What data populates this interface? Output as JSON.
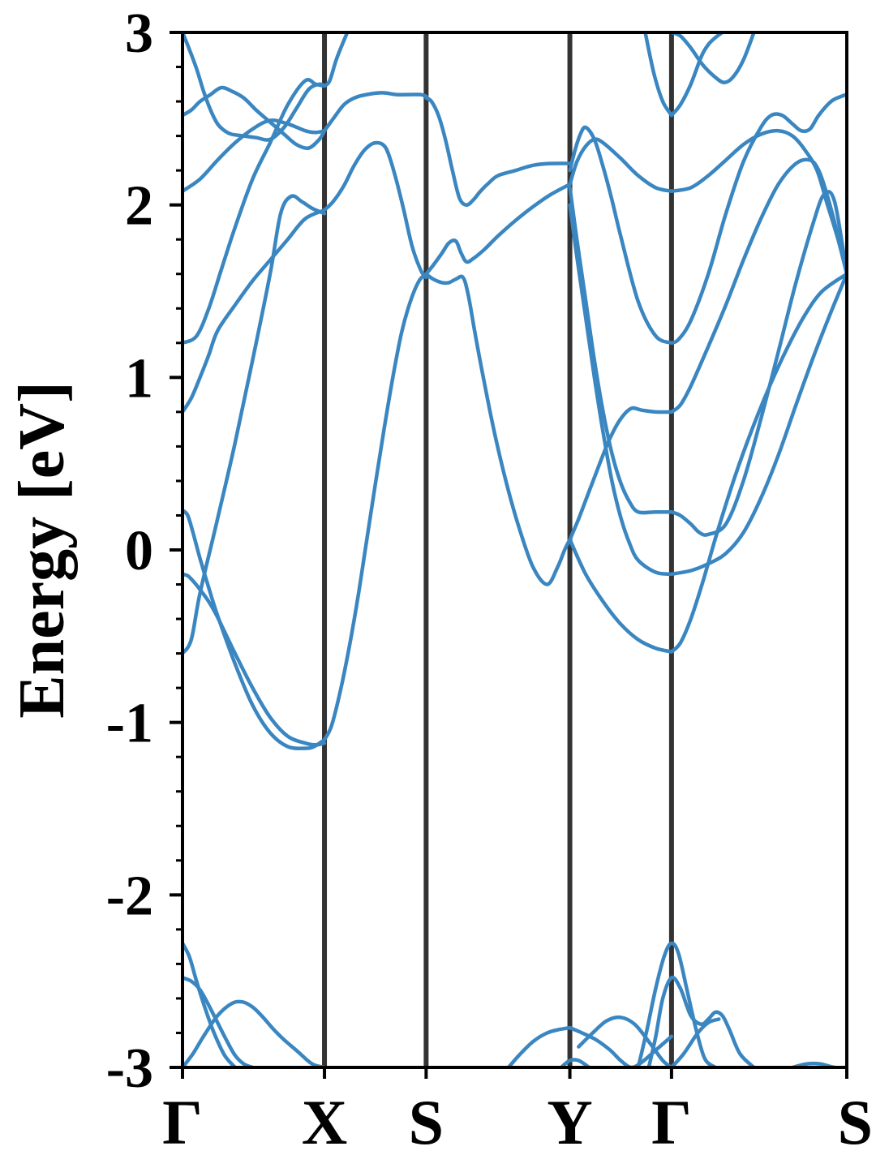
{
  "chart_data": {
    "type": "line",
    "title": "",
    "xlabel": "",
    "ylabel": "Energy [eV]",
    "ylim": [
      -3,
      3
    ],
    "yticks": [
      {
        "value": 3,
        "label": "3"
      },
      {
        "value": 2,
        "label": "2"
      },
      {
        "value": 1,
        "label": "1"
      },
      {
        "value": 0,
        "label": "0"
      },
      {
        "value": -1,
        "label": "-1"
      },
      {
        "value": -2,
        "label": "-2"
      },
      {
        "value": -3,
        "label": "-3"
      }
    ],
    "y_minor_step": 0.2,
    "grid": false,
    "legend": "none",
    "colors": {
      "bands": "#3a86c1",
      "kpath_lines": "#333333",
      "axes": "#000000"
    },
    "xlim": [
      0,
      3.79
    ],
    "kpoints": [
      {
        "label": "Γ",
        "x": 0.0
      },
      {
        "label": "X",
        "x": 0.81
      },
      {
        "label": "S",
        "x": 1.39
      },
      {
        "label": "Y",
        "x": 2.21
      },
      {
        "label": "Γ",
        "x": 2.79
      },
      {
        "label": "S",
        "x": 3.79
      }
    ],
    "series": [
      {
        "x": [
          0.0,
          0.05,
          0.1,
          0.16,
          0.22,
          0.28,
          0.35,
          0.42,
          0.5,
          0.58,
          0.65,
          0.72,
          0.78,
          0.81
        ],
        "y": [
          2.52,
          2.55,
          2.6,
          2.64,
          2.68,
          2.66,
          2.62,
          2.55,
          2.48,
          2.41,
          2.35,
          2.33,
          2.38,
          2.43
        ]
      },
      {
        "x": [
          0.0,
          0.1,
          0.2,
          0.3,
          0.4,
          0.5,
          0.6,
          0.7,
          0.76,
          0.81
        ],
        "y": [
          2.08,
          2.15,
          2.26,
          2.36,
          2.44,
          2.49,
          2.47,
          2.43,
          2.42,
          2.43
        ]
      },
      {
        "x": [
          0.0,
          0.04,
          0.08,
          0.12,
          0.16,
          0.2,
          0.24,
          0.28,
          0.35,
          0.42,
          0.5,
          0.58,
          0.65,
          0.72,
          0.78,
          0.81
        ],
        "y": [
          3.0,
          2.9,
          2.79,
          2.66,
          2.55,
          2.47,
          2.43,
          2.41,
          2.4,
          2.39,
          2.38,
          2.45,
          2.56,
          2.67,
          2.7,
          2.69
        ]
      },
      {
        "x": [
          0.0,
          0.08,
          0.15,
          0.22,
          0.3,
          0.4,
          0.5,
          0.6,
          0.7,
          0.76,
          0.81
        ],
        "y": [
          1.2,
          1.24,
          1.4,
          1.62,
          1.87,
          2.15,
          2.36,
          2.58,
          2.72,
          2.7,
          2.69
        ]
      },
      {
        "x": [
          0.0,
          0.05,
          0.1,
          0.15,
          0.2,
          0.3,
          0.4,
          0.5,
          0.6,
          0.7,
          0.81
        ],
        "y": [
          0.8,
          0.88,
          1.0,
          1.13,
          1.27,
          1.42,
          1.56,
          1.68,
          1.8,
          1.92,
          1.97
        ]
      },
      {
        "x": [
          0.0,
          0.05,
          0.1,
          0.2,
          0.3,
          0.4,
          0.5,
          0.56,
          0.62,
          0.68,
          0.74,
          0.81
        ],
        "y": [
          -0.6,
          -0.52,
          -0.25,
          0.18,
          0.62,
          1.1,
          1.6,
          1.95,
          2.05,
          2.02,
          1.98,
          1.95
        ]
      },
      {
        "x": [
          0.0,
          0.03,
          0.06,
          0.1,
          0.15,
          0.2,
          0.3,
          0.4,
          0.5,
          0.6,
          0.7,
          0.75,
          0.81
        ],
        "y": [
          0.23,
          0.2,
          0.1,
          -0.05,
          -0.22,
          -0.38,
          -0.66,
          -0.9,
          -1.06,
          -1.14,
          -1.15,
          -1.14,
          -1.1
        ]
      },
      {
        "x": [
          0.0,
          0.03,
          0.06,
          0.1,
          0.15,
          0.2,
          0.3,
          0.4,
          0.5,
          0.6,
          0.7,
          0.76,
          0.81
        ],
        "y": [
          -0.14,
          -0.15,
          -0.18,
          -0.23,
          -0.3,
          -0.39,
          -0.6,
          -0.8,
          -0.97,
          -1.08,
          -1.12,
          -1.13,
          -1.12
        ]
      },
      {
        "x": [
          0.81,
          0.84,
          0.88,
          0.94
        ],
        "y": [
          2.69,
          2.72,
          2.85,
          3.0
        ]
      },
      {
        "x": [
          0.81,
          0.86,
          0.92,
          0.98,
          1.05,
          1.14,
          1.22,
          1.3,
          1.36,
          1.39
        ],
        "y": [
          2.43,
          2.5,
          2.58,
          2.62,
          2.64,
          2.65,
          2.64,
          2.64,
          2.64,
          2.63
        ]
      },
      {
        "x": [
          0.81,
          0.86,
          0.92,
          0.98,
          1.04,
          1.1,
          1.16,
          1.21,
          1.26,
          1.31,
          1.36,
          1.39
        ],
        "y": [
          1.97,
          2.02,
          2.11,
          2.23,
          2.32,
          2.36,
          2.33,
          2.18,
          1.98,
          1.76,
          1.62,
          1.58
        ]
      },
      {
        "x": [
          0.81,
          0.85,
          0.9,
          0.95,
          1.0,
          1.05,
          1.1,
          1.15,
          1.2,
          1.25,
          1.3,
          1.35,
          1.39
        ],
        "y": [
          -1.1,
          -1.02,
          -0.82,
          -0.57,
          -0.28,
          0.05,
          0.38,
          0.7,
          1.0,
          1.26,
          1.44,
          1.56,
          1.6
        ]
      },
      {
        "x": [
          1.39,
          1.42,
          1.46,
          1.5,
          1.54,
          1.58,
          1.62,
          1.66,
          1.7,
          1.75,
          1.8,
          1.9,
          2.0,
          2.1,
          2.21
        ],
        "y": [
          2.62,
          2.6,
          2.52,
          2.38,
          2.2,
          2.04,
          2.0,
          2.03,
          2.08,
          2.13,
          2.17,
          2.2,
          2.23,
          2.24,
          2.24
        ]
      },
      {
        "x": [
          1.39,
          1.43,
          1.48,
          1.52,
          1.56,
          1.59,
          1.62,
          1.66,
          1.72,
          1.8,
          1.9,
          2.0,
          2.1,
          2.21
        ],
        "y": [
          1.6,
          1.65,
          1.72,
          1.78,
          1.79,
          1.72,
          1.67,
          1.69,
          1.74,
          1.82,
          1.91,
          1.99,
          2.06,
          2.12
        ]
      },
      {
        "x": [
          1.39,
          1.43,
          1.48,
          1.52,
          1.56,
          1.6,
          1.63,
          1.67,
          1.72,
          1.78,
          1.85,
          1.92,
          2.0,
          2.08,
          2.14,
          2.18,
          2.21
        ],
        "y": [
          1.6,
          1.57,
          1.55,
          1.55,
          1.57,
          1.58,
          1.48,
          1.25,
          0.98,
          0.68,
          0.38,
          0.13,
          -0.1,
          -0.2,
          -0.1,
          0.0,
          0.06
        ]
      },
      {
        "x": [
          2.21,
          2.24,
          2.27,
          2.3,
          2.35,
          2.4,
          2.45,
          2.5,
          2.6,
          2.7,
          2.79
        ],
        "y": [
          2.2,
          2.32,
          2.41,
          2.45,
          2.38,
          2.22,
          2.03,
          1.82,
          1.44,
          1.24,
          1.2
        ]
      },
      {
        "x": [
          2.21,
          2.25,
          2.3,
          2.35,
          2.4,
          2.5,
          2.6,
          2.7,
          2.79
        ],
        "y": [
          2.12,
          2.25,
          2.34,
          2.38,
          2.36,
          2.27,
          2.17,
          2.1,
          2.08
        ]
      },
      {
        "x": [
          2.21,
          2.25,
          2.3,
          2.35,
          2.4,
          2.45,
          2.5,
          2.55,
          2.6,
          2.7,
          2.79
        ],
        "y": [
          2.1,
          1.8,
          1.45,
          1.1,
          0.8,
          0.56,
          0.39,
          0.28,
          0.22,
          0.22,
          0.22
        ]
      },
      {
        "x": [
          2.21,
          2.25,
          2.3,
          2.35,
          2.4,
          2.45,
          2.5,
          2.55,
          2.6,
          2.7,
          2.79
        ],
        "y": [
          2.0,
          1.7,
          1.35,
          1.0,
          0.68,
          0.4,
          0.19,
          0.04,
          -0.06,
          -0.13,
          -0.14
        ]
      },
      {
        "x": [
          2.21,
          2.26,
          2.32,
          2.38,
          2.44,
          2.5,
          2.56,
          2.62,
          2.7,
          2.79
        ],
        "y": [
          0.06,
          0.18,
          0.34,
          0.5,
          0.65,
          0.76,
          0.82,
          0.81,
          0.8,
          0.8
        ]
      },
      {
        "x": [
          2.21,
          2.3,
          2.4,
          2.5,
          2.6,
          2.7,
          2.79
        ],
        "y": [
          0.06,
          -0.14,
          -0.3,
          -0.43,
          -0.52,
          -0.57,
          -0.59
        ]
      },
      {
        "x": [
          2.64,
          2.69,
          2.74,
          2.79
        ],
        "y": [
          3.0,
          2.76,
          2.6,
          2.52
        ]
      },
      {
        "x": [
          2.79,
          2.84,
          2.9,
          2.96,
          3.0,
          3.04,
          3.08
        ],
        "y": [
          2.52,
          2.58,
          2.7,
          2.86,
          2.93,
          2.97,
          3.0
        ]
      },
      {
        "x": [
          2.79,
          2.84,
          2.9,
          2.97,
          3.04,
          3.09,
          3.14,
          3.2,
          3.26
        ],
        "y": [
          3.0,
          2.98,
          2.91,
          2.81,
          2.74,
          2.71,
          2.74,
          2.84,
          3.0
        ]
      },
      {
        "x": [
          2.79,
          2.9,
          3.0,
          3.1,
          3.2,
          3.3,
          3.4,
          3.48,
          3.55,
          3.62,
          3.68,
          3.74,
          3.79
        ],
        "y": [
          2.08,
          2.1,
          2.17,
          2.26,
          2.35,
          2.41,
          2.43,
          2.4,
          2.32,
          2.2,
          2.0,
          1.8,
          1.6
        ]
      },
      {
        "x": [
          2.79,
          2.83,
          2.9,
          3.0,
          3.1,
          3.2,
          3.3,
          3.36,
          3.42,
          3.48,
          3.53,
          3.58,
          3.63,
          3.7,
          3.76,
          3.79
        ],
        "y": [
          1.2,
          1.22,
          1.33,
          1.6,
          1.95,
          2.25,
          2.45,
          2.52,
          2.52,
          2.47,
          2.43,
          2.44,
          2.52,
          2.6,
          2.63,
          2.64
        ]
      },
      {
        "x": [
          2.79,
          2.84,
          2.9,
          3.0,
          3.1,
          3.2,
          3.3,
          3.4,
          3.5,
          3.58,
          3.63,
          3.68,
          3.74,
          3.79
        ],
        "y": [
          0.8,
          0.84,
          0.95,
          1.18,
          1.42,
          1.68,
          1.92,
          2.12,
          2.24,
          2.26,
          2.2,
          2.05,
          1.82,
          1.6
        ]
      },
      {
        "x": [
          2.79,
          2.84,
          2.9,
          2.95,
          3.0,
          3.1,
          3.2,
          3.3,
          3.4,
          3.5,
          3.6,
          3.66,
          3.72,
          3.79
        ],
        "y": [
          0.22,
          0.2,
          0.15,
          0.1,
          0.09,
          0.15,
          0.4,
          0.76,
          1.15,
          1.55,
          1.9,
          2.06,
          2.02,
          1.6
        ]
      },
      {
        "x": [
          2.79,
          2.9,
          3.0,
          3.1,
          3.2,
          3.3,
          3.4,
          3.5,
          3.6,
          3.7,
          3.79
        ],
        "y": [
          -0.14,
          -0.12,
          -0.08,
          -0.02,
          0.1,
          0.3,
          0.55,
          0.84,
          1.12,
          1.38,
          1.6
        ]
      },
      {
        "x": [
          2.79,
          2.84,
          2.9,
          2.97,
          3.05,
          3.15,
          3.25,
          3.35,
          3.45,
          3.55,
          3.65,
          3.79
        ],
        "y": [
          -0.59,
          -0.54,
          -0.4,
          -0.18,
          0.1,
          0.42,
          0.7,
          0.95,
          1.17,
          1.36,
          1.5,
          1.6
        ]
      },
      {
        "x": [
          0.0,
          0.04,
          0.08,
          0.13,
          0.18,
          0.24,
          0.3
        ],
        "y": [
          -2.28,
          -2.36,
          -2.5,
          -2.66,
          -2.8,
          -2.93,
          -3.0
        ]
      },
      {
        "x": [
          0.0,
          0.05,
          0.1,
          0.15,
          0.2,
          0.25,
          0.3,
          0.35,
          0.4
        ],
        "y": [
          -2.48,
          -2.5,
          -2.55,
          -2.64,
          -2.74,
          -2.84,
          -2.93,
          -2.98,
          -3.0
        ]
      },
      {
        "x": [
          0.0,
          0.06,
          0.12,
          0.2,
          0.28,
          0.34,
          0.4,
          0.46,
          0.52,
          0.58,
          0.66,
          0.74,
          0.81
        ],
        "y": [
          -3.0,
          -2.92,
          -2.82,
          -2.7,
          -2.63,
          -2.62,
          -2.65,
          -2.71,
          -2.78,
          -2.84,
          -2.91,
          -2.98,
          -3.0
        ]
      },
      {
        "x": [
          1.86,
          1.92,
          2.0,
          2.08,
          2.15,
          2.21
        ],
        "y": [
          -3.0,
          -2.93,
          -2.85,
          -2.8,
          -2.78,
          -2.77
        ]
      },
      {
        "x": [
          2.21,
          2.28,
          2.36,
          2.44,
          2.5,
          2.56,
          2.62,
          2.7,
          2.79
        ],
        "y": [
          -2.77,
          -2.8,
          -2.84,
          -2.9,
          -2.96,
          -3.0,
          -2.97,
          -2.9,
          -2.82
        ]
      },
      {
        "x": [
          2.16,
          2.21,
          2.26,
          2.32
        ],
        "y": [
          -3.0,
          -2.96,
          -2.96,
          -3.0
        ]
      },
      {
        "x": [
          2.26,
          2.34,
          2.42,
          2.5,
          2.58,
          2.66,
          2.74,
          2.79
        ],
        "y": [
          -2.88,
          -2.8,
          -2.73,
          -2.71,
          -2.75,
          -2.85,
          -2.96,
          -3.0
        ]
      },
      {
        "x": [
          2.6,
          2.65,
          2.7,
          2.75,
          2.79,
          2.83,
          2.88,
          2.93,
          2.98,
          3.04
        ],
        "y": [
          -3.0,
          -2.78,
          -2.54,
          -2.35,
          -2.28,
          -2.34,
          -2.56,
          -2.78,
          -2.95,
          -3.0
        ]
      },
      {
        "x": [
          2.66,
          2.7,
          2.74,
          2.79,
          2.84,
          2.9,
          2.96,
          3.0,
          3.04,
          3.08,
          3.12,
          3.18,
          3.26
        ],
        "y": [
          -3.0,
          -2.82,
          -2.6,
          -2.48,
          -2.54,
          -2.7,
          -2.75,
          -2.72,
          -2.68,
          -2.7,
          -2.78,
          -2.92,
          -3.0
        ]
      },
      {
        "x": [
          2.79,
          2.86,
          2.94,
          3.0,
          3.06
        ],
        "y": [
          -3.0,
          -2.92,
          -2.8,
          -2.74,
          -2.72
        ]
      },
      {
        "x": [
          3.48,
          3.56,
          3.64,
          3.72,
          3.79
        ],
        "y": [
          -3.0,
          -2.98,
          -2.98,
          -3.0,
          -3.0
        ]
      }
    ]
  }
}
